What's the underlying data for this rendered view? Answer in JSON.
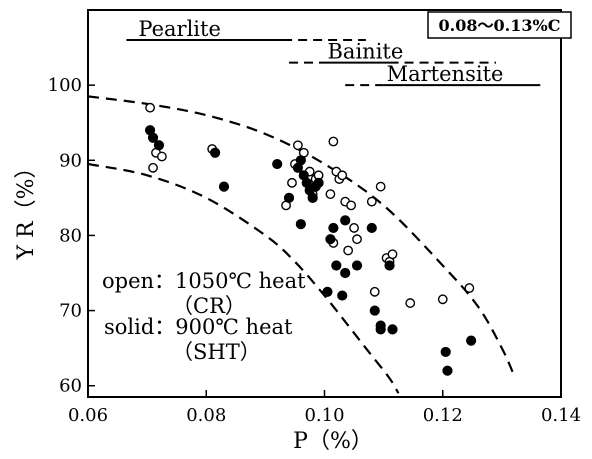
{
  "chart_data": {
    "type": "scatter",
    "xlabel": "P（%）",
    "ylabel": "Y R（%）",
    "xlim": [
      0.06,
      0.14
    ],
    "ylim": [
      58.5,
      110
    ],
    "xticks": [
      0.06,
      0.08,
      0.1,
      0.12,
      0.14
    ],
    "xtick_labels": [
      "0.06",
      "0.08",
      "0.10",
      "0.12",
      "0.14"
    ],
    "yticks": [
      60,
      70,
      80,
      90,
      100
    ],
    "ytick_labels": [
      "60",
      "70",
      "80",
      "90",
      "100"
    ],
    "grid": false,
    "composition_note": "0.08～0.13%C",
    "legend_lines": [
      "open：1050℃ heat",
      "（CR）",
      "solid：900℃ heat",
      "（SHT）"
    ],
    "phase_ranges": [
      {
        "label": "Pearlite",
        "y": 106,
        "solid": [
          0.0665,
          0.093
        ],
        "dashed": [
          0.093,
          0.107
        ]
      },
      {
        "label": "Bainite",
        "y": 103,
        "solid": [
          0.1,
          0.111
        ],
        "dashed": [
          0.094,
          0.1
        ],
        "dashed_after": [
          0.111,
          0.129
        ]
      },
      {
        "label": "Martensite",
        "y": 100,
        "solid": [
          0.11,
          0.1365
        ],
        "dashed": [
          0.1035,
          0.11
        ]
      }
    ],
    "boundaries": [
      {
        "style": "dashed",
        "x": [
          0.06,
          0.07,
          0.08,
          0.09,
          0.1,
          0.11,
          0.12,
          0.126,
          0.13,
          0.132
        ],
        "y": [
          98.5,
          97.5,
          96,
          93.5,
          89.5,
          84,
          76,
          70.5,
          65,
          61.5
        ]
      },
      {
        "style": "dashed",
        "x": [
          0.06,
          0.07,
          0.08,
          0.09,
          0.095,
          0.1,
          0.105,
          0.108,
          0.111,
          0.1125
        ],
        "y": [
          89.5,
          88,
          85,
          80,
          76.5,
          72,
          67,
          64,
          61,
          59
        ]
      }
    ],
    "series": [
      {
        "name": "open",
        "marker": "open-circle",
        "x": [
          0.0705,
          0.071,
          0.0715,
          0.0725,
          0.081,
          0.0815,
          0.0935,
          0.0945,
          0.0955,
          0.095,
          0.0965,
          0.0975,
          0.098,
          0.0985,
          0.099,
          0.101,
          0.1015,
          0.102,
          0.1025,
          0.103,
          0.1035,
          0.1045,
          0.105,
          0.1055,
          0.104,
          0.1015,
          0.108,
          0.1095,
          0.1105,
          0.111,
          0.1115,
          0.1085,
          0.1145,
          0.12,
          0.1245
        ],
        "y": [
          97,
          89,
          91,
          90.5,
          91.5,
          91,
          84,
          87,
          92,
          89.5,
          91,
          88.5,
          85.5,
          87.5,
          88,
          85.5,
          92.5,
          88.5,
          87.5,
          88,
          84.5,
          84,
          81,
          79.5,
          78,
          79,
          84.5,
          86.5,
          77,
          76.5,
          77.5,
          72.5,
          71,
          71.5,
          73
        ]
      },
      {
        "name": "solid",
        "marker": "filled-circle",
        "x": [
          0.0705,
          0.071,
          0.072,
          0.083,
          0.0815,
          0.092,
          0.094,
          0.0955,
          0.096,
          0.0965,
          0.097,
          0.0975,
          0.098,
          0.0985,
          0.099,
          0.096,
          0.101,
          0.1015,
          0.1035,
          0.102,
          0.1035,
          0.1055,
          0.108,
          0.1085,
          0.1095,
          0.111,
          0.1095,
          0.1115,
          0.1205,
          0.1208,
          0.1248,
          0.1005,
          0.103
        ],
        "y": [
          94,
          93,
          92,
          86.5,
          91,
          89.5,
          85,
          89,
          90,
          88,
          87,
          86,
          85,
          86.5,
          87,
          81.5,
          79.5,
          81,
          82,
          76,
          75,
          76,
          81,
          70,
          68,
          76,
          67.5,
          67.5,
          64.5,
          62,
          66,
          72.5,
          72
        ]
      }
    ]
  }
}
